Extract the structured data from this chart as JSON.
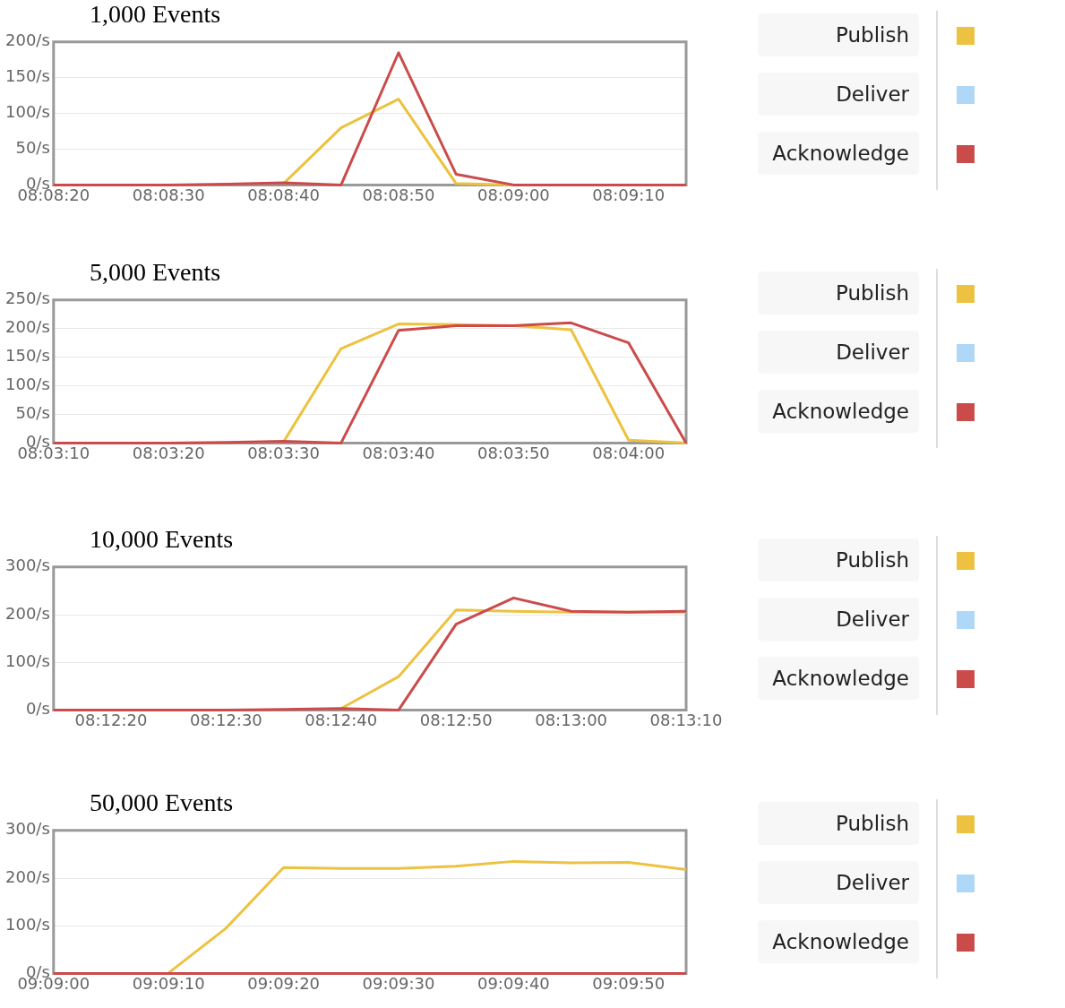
{
  "chart_data": [
    {
      "type": "line",
      "title": "1,000 Events",
      "x": [
        8.138889,
        8.140278,
        8.141667,
        8.143056,
        8.144444,
        8.145833,
        8.147222,
        8.148611,
        8.15,
        8.151389,
        8.152778,
        8.154167
      ],
      "xlim": [
        8.138889,
        8.154167
      ],
      "xticks": [
        {
          "value": 8.138889,
          "label": "08:08:20"
        },
        {
          "value": 8.141667,
          "label": "08:08:30"
        },
        {
          "value": 8.144444,
          "label": "08:08:40"
        },
        {
          "value": 8.147222,
          "label": "08:08:50"
        },
        {
          "value": 8.15,
          "label": "08:09:00"
        },
        {
          "value": 8.152778,
          "label": "08:09:10"
        }
      ],
      "ylim": [
        0,
        200
      ],
      "yticks": [
        {
          "value": 0,
          "label": "0/s"
        },
        {
          "value": 50,
          "label": "50/s"
        },
        {
          "value": 100,
          "label": "100/s"
        },
        {
          "value": 150,
          "label": "150/s"
        },
        {
          "value": 200,
          "label": "200/s"
        }
      ],
      "grid": "y",
      "legend": "right",
      "series": [
        {
          "name": "Publish",
          "color": "#edc240",
          "values": [
            null,
            null,
            null,
            null,
            2,
            80,
            120,
            2,
            0,
            null,
            null,
            null
          ]
        },
        {
          "name": "Deliver",
          "color": "#afd8f8",
          "values": [
            null,
            null,
            null,
            null,
            null,
            null,
            null,
            null,
            null,
            null,
            null,
            null
          ]
        },
        {
          "name": "Acknowledge",
          "color": "#cb4b4b",
          "values": [
            0,
            0,
            0,
            1,
            3,
            0,
            185,
            15,
            0,
            0,
            0,
            0
          ]
        }
      ]
    },
    {
      "type": "line",
      "title": "5,000 Events",
      "x": [
        8.052778,
        8.054167,
        8.055556,
        8.056944,
        8.058333,
        8.059722,
        8.061111,
        8.0625,
        8.063889,
        8.065278,
        8.066667,
        8.068056
      ],
      "xlim": [
        8.052778,
        8.068056
      ],
      "xticks": [
        {
          "value": 8.052778,
          "label": "08:03:10"
        },
        {
          "value": 8.055556,
          "label": "08:03:20"
        },
        {
          "value": 8.058333,
          "label": "08:03:30"
        },
        {
          "value": 8.061111,
          "label": "08:03:40"
        },
        {
          "value": 8.063889,
          "label": "08:03:50"
        },
        {
          "value": 8.066667,
          "label": "08:04:00"
        }
      ],
      "ylim": [
        0,
        250
      ],
      "yticks": [
        {
          "value": 0,
          "label": "0/s"
        },
        {
          "value": 50,
          "label": "50/s"
        },
        {
          "value": 100,
          "label": "100/s"
        },
        {
          "value": 150,
          "label": "150/s"
        },
        {
          "value": 200,
          "label": "200/s"
        },
        {
          "value": 250,
          "label": "250/s"
        }
      ],
      "grid": "y",
      "legend": "right",
      "series": [
        {
          "name": "Publish",
          "color": "#edc240",
          "values": [
            null,
            null,
            null,
            null,
            2,
            165,
            208,
            207,
            205,
            198,
            5,
            0
          ]
        },
        {
          "name": "Deliver",
          "color": "#afd8f8",
          "values": [
            null,
            null,
            null,
            null,
            null,
            null,
            null,
            null,
            null,
            null,
            null,
            null
          ]
        },
        {
          "name": "Acknowledge",
          "color": "#cb4b4b",
          "values": [
            0,
            0,
            0,
            1,
            3,
            0,
            197,
            205,
            205,
            210,
            175,
            0
          ]
        }
      ]
    },
    {
      "type": "line",
      "title": "10,000 Events",
      "x": [
        8.204167,
        8.205556,
        8.206944,
        8.208333,
        8.209722,
        8.211111,
        8.2125,
        8.213889,
        8.215278,
        8.216667,
        8.218056,
        8.219444
      ],
      "xlim": [
        8.204167,
        8.219444
      ],
      "xticks": [
        {
          "value": 8.205556,
          "label": "08:12:20"
        },
        {
          "value": 8.208333,
          "label": "08:12:30"
        },
        {
          "value": 8.211111,
          "label": "08:12:40"
        },
        {
          "value": 8.213889,
          "label": "08:12:50"
        },
        {
          "value": 8.216667,
          "label": "08:13:00"
        },
        {
          "value": 8.219444,
          "label": "08:13:10"
        }
      ],
      "ylim": [
        0,
        300
      ],
      "yticks": [
        {
          "value": 0,
          "label": "0/s"
        },
        {
          "value": 100,
          "label": "100/s"
        },
        {
          "value": 200,
          "label": "200/s"
        },
        {
          "value": 300,
          "label": "300/s"
        }
      ],
      "grid": "y",
      "legend": "right",
      "series": [
        {
          "name": "Publish",
          "color": "#edc240",
          "values": [
            null,
            null,
            null,
            null,
            null,
            3,
            70,
            210,
            207,
            205,
            205,
            205
          ]
        },
        {
          "name": "Deliver",
          "color": "#afd8f8",
          "values": [
            null,
            null,
            null,
            null,
            null,
            null,
            null,
            null,
            null,
            null,
            null,
            null
          ]
        },
        {
          "name": "Acknowledge",
          "color": "#cb4b4b",
          "values": [
            0,
            0,
            0,
            0,
            1,
            3,
            0,
            180,
            235,
            207,
            205,
            207
          ]
        }
      ]
    },
    {
      "type": "line",
      "title": "50,000 Events",
      "x": [
        9.15,
        9.151389,
        9.152778,
        9.154167,
        9.155556,
        9.156944,
        9.158333,
        9.159722,
        9.161111,
        9.1625,
        9.163889,
        9.165278
      ],
      "xlim": [
        9.15,
        9.165278
      ],
      "xticks": [
        {
          "value": 9.15,
          "label": "09:09:00"
        },
        {
          "value": 9.152778,
          "label": "09:09:10"
        },
        {
          "value": 9.155556,
          "label": "09:09:20"
        },
        {
          "value": 9.158333,
          "label": "09:09:30"
        },
        {
          "value": 9.161111,
          "label": "09:09:40"
        },
        {
          "value": 9.163889,
          "label": "09:09:50"
        }
      ],
      "ylim": [
        0,
        300
      ],
      "yticks": [
        {
          "value": 0,
          "label": "0/s"
        },
        {
          "value": 100,
          "label": "100/s"
        },
        {
          "value": 200,
          "label": "200/s"
        },
        {
          "value": 300,
          "label": "300/s"
        }
      ],
      "grid": "y",
      "legend": "right",
      "series": [
        {
          "name": "Publish",
          "color": "#edc240",
          "values": [
            null,
            null,
            1,
            95,
            222,
            220,
            220,
            225,
            235,
            232,
            233,
            218
          ]
        },
        {
          "name": "Deliver",
          "color": "#afd8f8",
          "values": [
            null,
            null,
            null,
            null,
            null,
            null,
            null,
            null,
            null,
            null,
            null,
            null
          ]
        },
        {
          "name": "Acknowledge",
          "color": "#cb4b4b",
          "values": [
            0,
            0,
            0,
            0,
            0,
            0,
            0,
            0,
            0,
            0,
            0,
            0
          ]
        }
      ]
    }
  ]
}
